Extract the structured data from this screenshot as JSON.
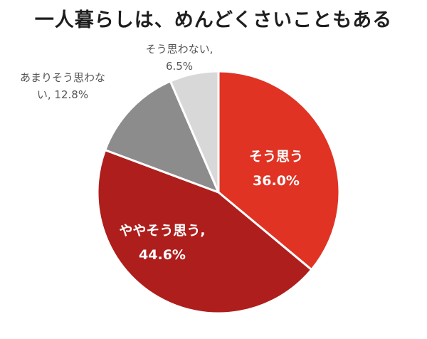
{
  "chart_data": {
    "type": "pie",
    "title": "一人暮らしは、めんどくさいこともある",
    "slices": [
      {
        "label": "そう思う",
        "value": 36.0,
        "value_label": "36.0%",
        "color": "#e03324",
        "label_lines": [
          "そう思う",
          "36.0%"
        ]
      },
      {
        "label": "ややそう思う",
        "value": 44.6,
        "value_label": "44.6%",
        "color": "#ae1e1c",
        "label_lines": [
          "ややそう思う,",
          "44.6%"
        ]
      },
      {
        "label": "あまりそう思わない",
        "value": 12.8,
        "value_label": "12.8%",
        "color": "#8c8c8c",
        "label_lines": [
          "あまりそう思わな",
          "い, 12.8%"
        ]
      },
      {
        "label": "そう思わない",
        "value": 6.5,
        "value_label": "6.5%",
        "color": "#d8d8d8",
        "label_lines": [
          "そう思わない,",
          "6.5%"
        ]
      }
    ]
  }
}
